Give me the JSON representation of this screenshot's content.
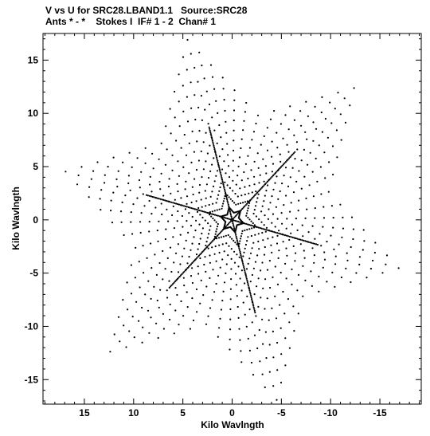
{
  "title_line1": "V vs U for SRC28.LBAND1.1   Source:SRC28",
  "title_line2": "Ants * - *    Stokes I  IF# 1 - 2  Chan# 1",
  "chart_data": {
    "type": "scatter",
    "title": "V vs U for SRC28.LBAND1.1   Source:SRC28",
    "subtitle": "Ants * - *    Stokes I  IF# 1 - 2  Chan# 1",
    "xlabel": "Kilo Wavlngth",
    "ylabel": "Kilo Wavlngth",
    "xlim": [
      19.2,
      -19.2
    ],
    "ylim": [
      -17.3,
      17.5
    ],
    "x_reversed": true,
    "x_ticks": [
      15,
      10,
      5,
      0,
      -5,
      -10,
      -15
    ],
    "x_tick_labels": [
      "15",
      "10",
      "5",
      "0",
      "-5",
      "-10",
      "-15"
    ],
    "y_ticks": [
      15,
      10,
      5,
      0,
      -5,
      -10,
      -15
    ],
    "y_tick_labels": [
      "15",
      "10",
      "5",
      "0",
      "-5",
      "-10",
      "-15"
    ],
    "grid": false,
    "marker_color": "#000000",
    "pattern": "hexagonal uv-coverage snowflake",
    "arm_angles_deg": [
      15,
      75,
      135
    ],
    "arm_radius": 9.0,
    "arm_dots_per_side": 55,
    "ring_count": 13,
    "ring_radius_min": 1.2,
    "ring_radius_max": 17.5,
    "ring_dots_per_side": 6
  }
}
